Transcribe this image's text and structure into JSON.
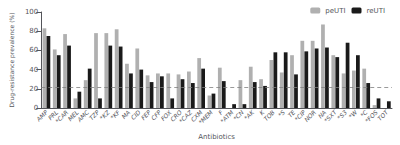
{
  "chart_data": {
    "type": "bar",
    "xlabel": "Antibiotics",
    "ylabel": "Drug-resistance prevalence (%)",
    "categories": [
      "AMP",
      "PRL",
      "*CAR",
      "MEL",
      "AMC",
      "TZP",
      "*KZ",
      "*KF",
      "MA",
      "CID",
      "FEP",
      "CFP",
      "FOX",
      "CRO",
      "*CAZ",
      "CXM",
      "*MEM",
      "F",
      "*ATM",
      "*CN",
      "*AK",
      "K",
      "TOB",
      "*S",
      "TE",
      "*CIP",
      "NOR",
      "NA",
      "*SXT",
      "*S3",
      "*W",
      "*C",
      "*FOS",
      "TOT"
    ],
    "series": [
      {
        "name": "peUTI",
        "color": "#b0b0b0",
        "values": [
          83,
          61,
          77,
          10,
          29,
          78,
          78,
          82,
          46,
          62,
          34,
          36,
          36,
          35,
          38,
          52,
          13,
          42,
          0,
          29,
          43,
          30,
          50,
          37,
          55,
          70,
          70,
          87,
          55,
          36,
          39,
          41,
          3,
          0
        ]
      },
      {
        "name": "reUTI",
        "color": "#1a1a1a",
        "values": [
          75,
          55,
          65,
          17,
          41,
          10,
          65,
          64,
          36,
          40,
          27,
          33,
          10,
          30,
          26,
          41,
          15,
          28,
          4,
          4,
          27,
          23,
          58,
          58,
          35,
          59,
          62,
          63,
          53,
          68,
          55,
          26,
          10,
          7
        ]
      }
    ],
    "hline": 22,
    "ylim": [
      0,
      100
    ],
    "yticks": [
      0,
      20,
      40,
      60,
      80,
      100
    ],
    "grid": false,
    "legend": "upper right"
  }
}
